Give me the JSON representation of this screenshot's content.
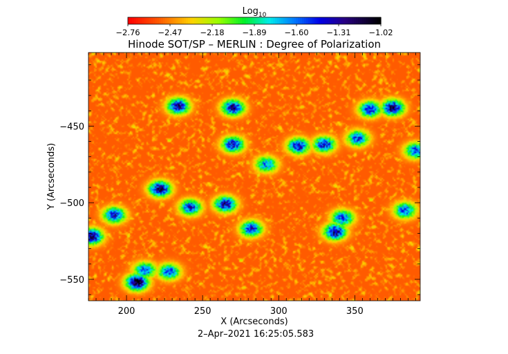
{
  "chart_data": {
    "type": "heatmap",
    "title": "Hinode SOT/SP – MERLIN : Degree of Polarization",
    "xlabel": "X (Arcseconds)",
    "ylabel": "Y (Arcseconds)",
    "xlim": [
      175,
      393
    ],
    "ylim": [
      -564,
      -402
    ],
    "x_ticks": [
      200,
      250,
      300,
      350
    ],
    "y_ticks": [
      -450,
      -500,
      -550
    ],
    "x_tick_labels": [
      "200",
      "250",
      "300",
      "350"
    ],
    "y_tick_labels": [
      "−450",
      "−500",
      "−550"
    ],
    "colorbar": {
      "title_base": "Log",
      "title_sub": "10",
      "range": [
        -2.76,
        -1.02
      ],
      "tick_values": [
        -2.76,
        -2.47,
        -2.18,
        -1.89,
        -1.6,
        -1.31,
        -1.02
      ],
      "tick_labels": [
        "−2.76",
        "−2.47",
        "−2.18",
        "−1.89",
        "−1.60",
        "−1.31",
        "−1.02"
      ],
      "colormap": "rainbow"
    },
    "date_label": "2–Apr–2021 16:25:05.583",
    "high_polarization_patches": [
      {
        "x": 177,
        "y": -522,
        "value": -1.15
      },
      {
        "x": 192,
        "y": -508,
        "value": -1.4
      },
      {
        "x": 207,
        "y": -552,
        "value": -1.05
      },
      {
        "x": 212,
        "y": -544,
        "value": -1.5
      },
      {
        "x": 222,
        "y": -491,
        "value": -1.2
      },
      {
        "x": 228,
        "y": -545,
        "value": -1.5
      },
      {
        "x": 234,
        "y": -437,
        "value": -1.25
      },
      {
        "x": 242,
        "y": -503,
        "value": -1.45
      },
      {
        "x": 265,
        "y": -501,
        "value": -1.3
      },
      {
        "x": 270,
        "y": -462,
        "value": -1.35
      },
      {
        "x": 270,
        "y": -438,
        "value": -1.25
      },
      {
        "x": 282,
        "y": -517,
        "value": -1.4
      },
      {
        "x": 292,
        "y": -475,
        "value": -1.6
      },
      {
        "x": 313,
        "y": -463,
        "value": -1.35
      },
      {
        "x": 330,
        "y": -462,
        "value": -1.4
      },
      {
        "x": 337,
        "y": -519,
        "value": -1.2
      },
      {
        "x": 342,
        "y": -510,
        "value": -1.45
      },
      {
        "x": 352,
        "y": -458,
        "value": -1.5
      },
      {
        "x": 360,
        "y": -439,
        "value": -1.4
      },
      {
        "x": 375,
        "y": -438,
        "value": -1.2
      },
      {
        "x": 383,
        "y": -505,
        "value": -1.5
      },
      {
        "x": 390,
        "y": -466,
        "value": -1.5
      }
    ]
  }
}
